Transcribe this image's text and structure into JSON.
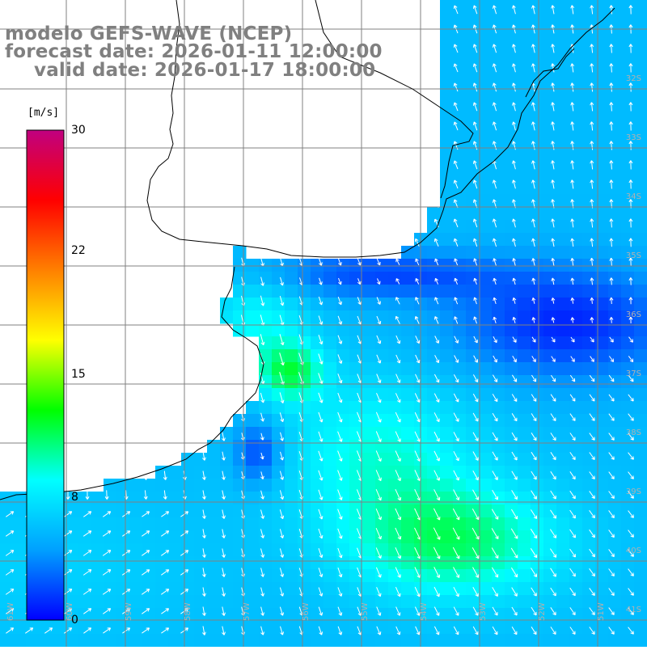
{
  "title": {
    "model": "modelo GEFS-WAVE (NCEP)",
    "forecast": "forecast date: 2026-01-11 12:00:00",
    "valid": "valid date: 2026-01-17 18:00:00"
  },
  "colorbar": {
    "unit": "[m/s]",
    "min": 0,
    "max": 30,
    "ticks": [
      {
        "value": 30,
        "label": "30"
      },
      {
        "value": 22,
        "label": "22"
      },
      {
        "value": 15,
        "label": "15"
      },
      {
        "value": 8,
        "label": "8"
      },
      {
        "value": 0,
        "label": "0"
      }
    ],
    "colors": [
      "#0000ff",
      "#00a0ff",
      "#00ffff",
      "#00ff00",
      "#ffff00",
      "#ff8000",
      "#ff0000",
      "#c00080"
    ]
  },
  "lat_labels": [
    "32S",
    "33S",
    "34S",
    "35S",
    "36S",
    "37S",
    "38S",
    "39S",
    "40S",
    "41S"
  ],
  "lon_labels": [
    "61W",
    "60W",
    "59W",
    "58W",
    "57W",
    "56W",
    "55W",
    "54W",
    "53W",
    "52W",
    "51W"
  ],
  "map": {
    "land_color": "#ffffff",
    "grid_color": "#808080",
    "coast_color": "#000000",
    "arrow_color": "#ffffff"
  }
}
